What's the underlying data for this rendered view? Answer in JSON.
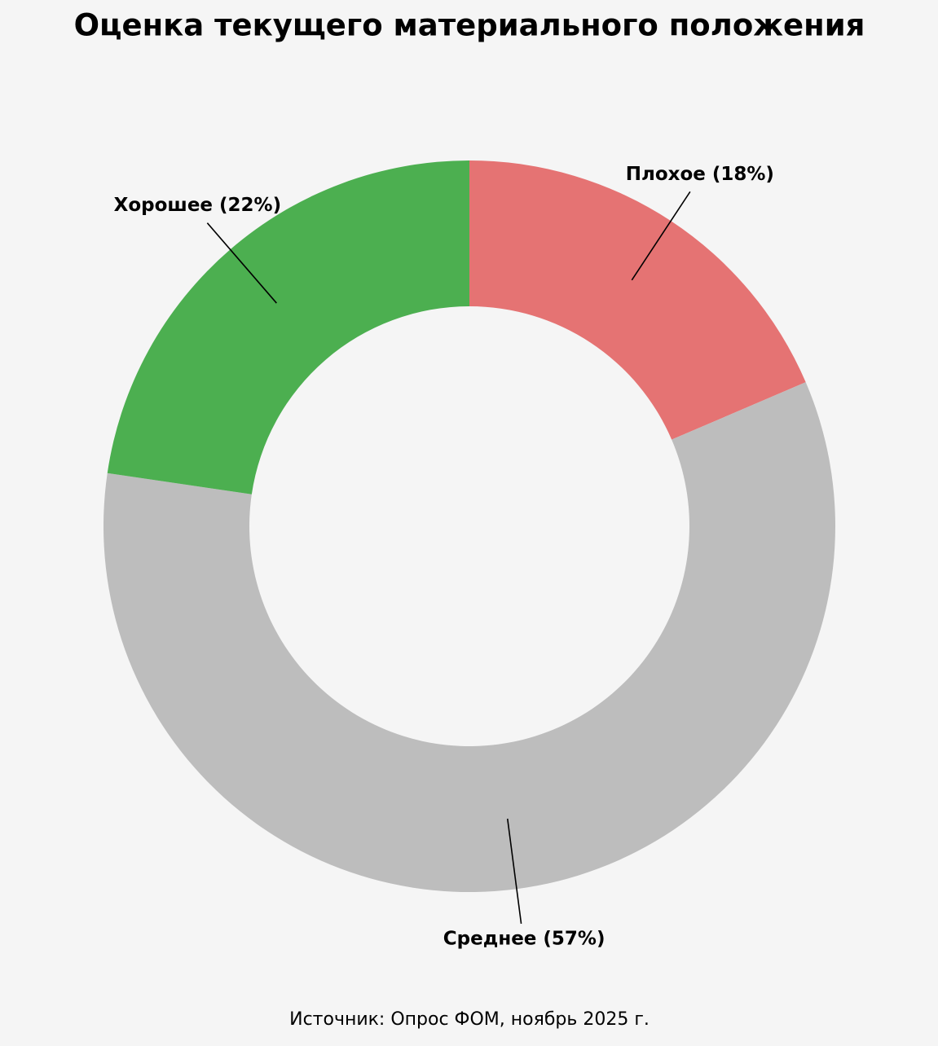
{
  "chart_data": {
    "type": "donut",
    "title": "Оценка текущего материального положения",
    "values": [
      18,
      57,
      22
    ],
    "value_labels": [
      "Плохое (18%)",
      "Среднее (57%)",
      "Хорошее (22%)"
    ],
    "colors": [
      "#e57373",
      "#bdbdbd",
      "#4caf50"
    ],
    "source": "Источник: Опрос ФОМ, ноябрь 2025 г."
  }
}
